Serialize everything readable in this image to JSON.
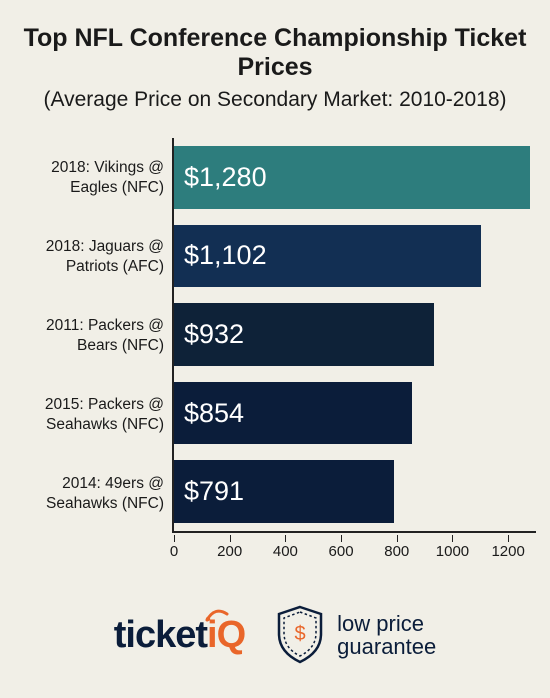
{
  "title": "Top NFL Conference Championship Ticket Prices",
  "subtitle": "(Average Price on Secondary Market: 2010-2018)",
  "chart": {
    "type": "bar-horizontal",
    "background_color": "#f1efe7",
    "axis_color": "#222222",
    "xlim": [
      0,
      1300
    ],
    "xticks": [
      0,
      200,
      400,
      600,
      800,
      1000,
      1200
    ],
    "label_fontsize": 15.5,
    "value_fontsize": 27,
    "value_color": "#ffffff",
    "bars": [
      {
        "label_line1": "2018: Vikings @",
        "label_line2": "Eagles (NFC)",
        "value": 1280,
        "display": "$1,280",
        "color": "#2d7d7d"
      },
      {
        "label_line1": "2018: Jaguars @",
        "label_line2": "Patriots (AFC)",
        "value": 1102,
        "display": "$1,102",
        "color": "#122f53"
      },
      {
        "label_line1": "2011: Packers @",
        "label_line2": "Bears (NFC)",
        "value": 932,
        "display": "$932",
        "color": "#0e2238"
      },
      {
        "label_line1": "2015: Packers @",
        "label_line2": "Seahawks (NFC)",
        "value": 854,
        "display": "$854",
        "color": "#0b1d3a"
      },
      {
        "label_line1": "2014: 49ers @",
        "label_line2": "Seahawks (NFC)",
        "value": 791,
        "display": "$791",
        "color": "#0b1d3a"
      }
    ]
  },
  "footer": {
    "logo1": {
      "part_a": "ticket",
      "part_b": "iQ",
      "color_a": "#0b1d3a",
      "color_b": "#e9662a"
    },
    "logo2": {
      "line1": "low price",
      "line2": "guarantee",
      "shield_color": "#0b1d3a",
      "shield_accent": "#e9662a",
      "text_color": "#0b1d3a"
    }
  }
}
